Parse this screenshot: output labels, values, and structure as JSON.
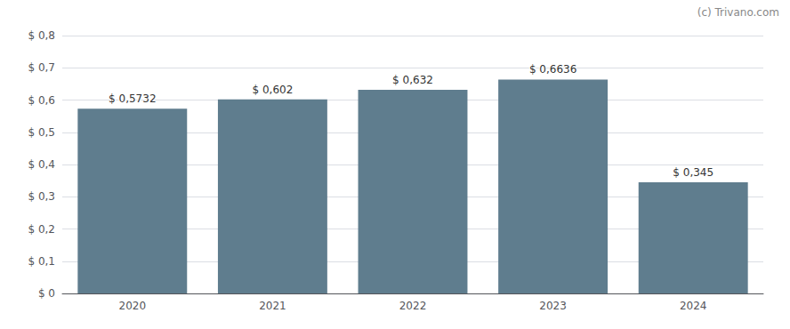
{
  "chart_data": {
    "type": "bar",
    "categories": [
      "2020",
      "2021",
      "2022",
      "2023",
      "2024"
    ],
    "values": [
      0.5732,
      0.602,
      0.632,
      0.6636,
      0.345
    ],
    "value_labels": [
      "$ 0,5732",
      "$ 0,602",
      "$ 0,632",
      "$ 0,6636",
      "$ 0,345"
    ],
    "data_labels": true,
    "color": "#5f7d8e",
    "ylim": [
      0,
      0.8
    ],
    "yticks": [
      {
        "value": 0,
        "label": "$ 0"
      },
      {
        "value": 0.1,
        "label": "$ 0,1"
      },
      {
        "value": 0.2,
        "label": "$ 0,2"
      },
      {
        "value": 0.3,
        "label": "$ 0,3"
      },
      {
        "value": 0.4,
        "label": "$ 0,4"
      },
      {
        "value": 0.5,
        "label": "$ 0,5"
      },
      {
        "value": 0.6,
        "label": "$ 0,6"
      },
      {
        "value": 0.7,
        "label": "$ 0,7"
      },
      {
        "value": 0.8,
        "label": "$ 0,8"
      }
    ],
    "grid": true,
    "annotations": [
      "(c) Trivano.com"
    ]
  }
}
